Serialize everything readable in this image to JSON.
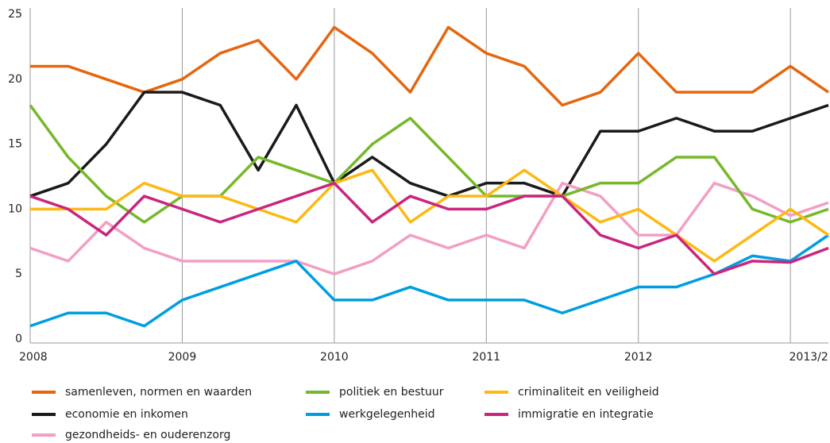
{
  "chart_data": {
    "type": "line",
    "categories": [
      "2008",
      null,
      null,
      null,
      "2009",
      null,
      null,
      null,
      "2010",
      null,
      null,
      null,
      "2011",
      null,
      null,
      null,
      "2012",
      null,
      null,
      null,
      "2013/2",
      null
    ],
    "series": [
      {
        "name": "samenleven, normen en waarden",
        "color": "#e5660f",
        "values": [
          21,
          21,
          20,
          19,
          20,
          22,
          23,
          20,
          24,
          22,
          19,
          24,
          22,
          21,
          18,
          19,
          22,
          19,
          19,
          19,
          21,
          19
        ]
      },
      {
        "name": "economie en inkomen",
        "color": "#1a1a1a",
        "values": [
          11,
          12,
          15,
          19,
          19,
          18,
          13,
          18,
          12,
          14,
          12,
          11,
          12,
          12,
          11,
          16,
          16,
          17,
          16,
          16,
          17,
          18
        ]
      },
      {
        "name": "gezondheids- en ouderenzorg",
        "color": "#f29fc5",
        "values": [
          7,
          6,
          9,
          7,
          6,
          6,
          6,
          6,
          5,
          6,
          8,
          7,
          8,
          7,
          12,
          11,
          8,
          8,
          12,
          11,
          9.5,
          10.5
        ]
      },
      {
        "name": "politiek en bestuur",
        "color": "#76b82a",
        "values": [
          18,
          14,
          11,
          9,
          11,
          11,
          14,
          13,
          12,
          15,
          17,
          14,
          11,
          11,
          11,
          12,
          12,
          14,
          14,
          10,
          9,
          10
        ]
      },
      {
        "name": "werkgelegenheid",
        "color": "#009ee0",
        "values": [
          1,
          2,
          2,
          1,
          3,
          4,
          5,
          6,
          3,
          3,
          4,
          3,
          3,
          3,
          2,
          3,
          4,
          4,
          5,
          6.4,
          6,
          8
        ]
      },
      {
        "name": "criminaliteit en veiligheid",
        "color": "#fdb913",
        "values": [
          10,
          10,
          10,
          12,
          11,
          11,
          10,
          9,
          12,
          13,
          9,
          11,
          11,
          13,
          11,
          9,
          10,
          8,
          6,
          8,
          10,
          8
        ]
      },
      {
        "name": "immigratie en integratie",
        "color": "#c9267e",
        "values": [
          11,
          10,
          8,
          11,
          10,
          9,
          10,
          11,
          12,
          9,
          11,
          10,
          10,
          11,
          11,
          8,
          7,
          8,
          5,
          6,
          5.9,
          7
        ]
      }
    ],
    "ylim": [
      0,
      25
    ],
    "yticks": [
      0,
      5,
      10,
      15,
      20,
      25
    ],
    "grid": true
  }
}
